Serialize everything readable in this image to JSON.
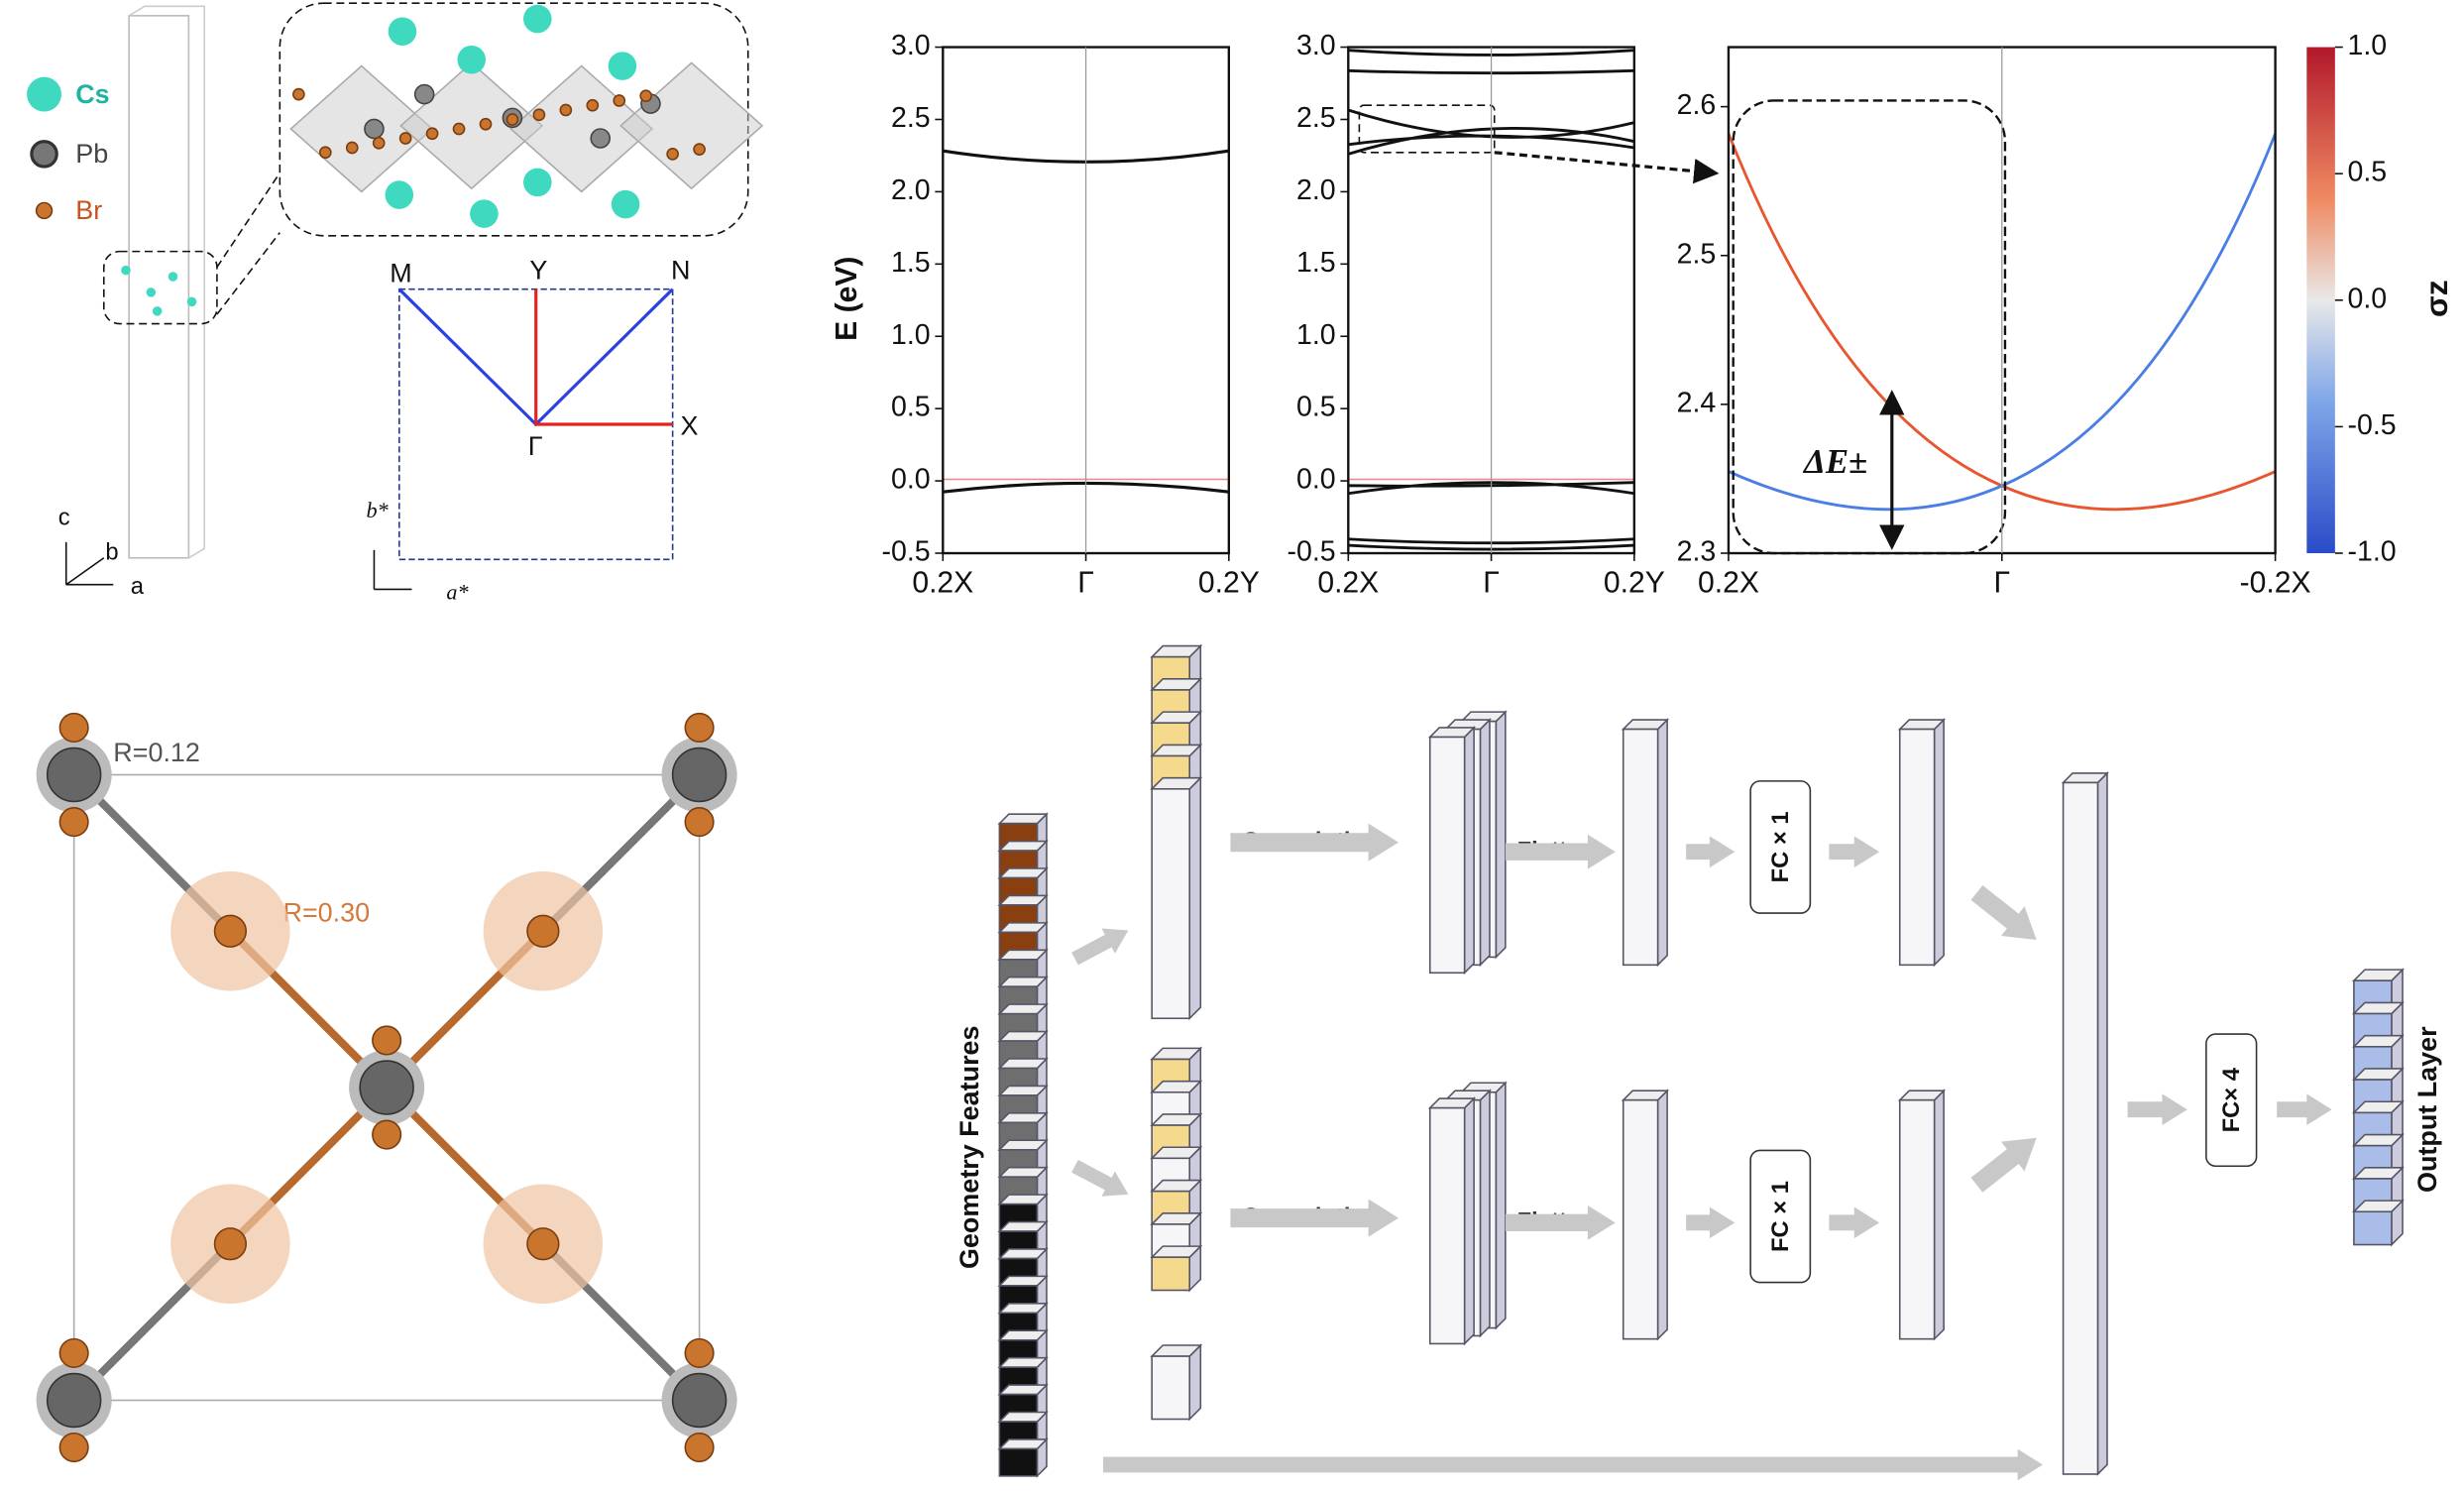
{
  "structure_panel": {
    "legend": [
      "Cs",
      "Pb",
      "Br"
    ],
    "axes": [
      "c",
      "b",
      "a"
    ],
    "bz_labels": [
      "M",
      "Y",
      "N",
      "Γ",
      "X"
    ],
    "reciprocal_axes": [
      "b*",
      "a*"
    ]
  },
  "band_panel": {
    "ylabel": "E (eV)",
    "plot_1": {
      "ylim": [
        -0.5,
        3.0
      ],
      "yticks": [
        {
          "value": 3.0,
          "label": "3.0"
        },
        {
          "value": 2.5,
          "label": "2.5"
        },
        {
          "value": 2.0,
          "label": "2.0"
        },
        {
          "value": 1.5,
          "label": "1.5"
        },
        {
          "value": 1.0,
          "label": "1.0"
        },
        {
          "value": 0.5,
          "label": "0.5"
        },
        {
          "value": 0.0,
          "label": "0.0"
        },
        {
          "value": -0.5,
          "label": "-0.5"
        }
      ],
      "xticks": [
        "0.2X",
        "Γ",
        "0.2Y"
      ]
    },
    "plot_2": {
      "ylim": [
        -0.5,
        3.0
      ],
      "yticks": [
        {
          "value": 3.0,
          "label": "3.0"
        },
        {
          "value": 2.5,
          "label": "2.5"
        },
        {
          "value": 2.0,
          "label": "2.0"
        },
        {
          "value": 1.5,
          "label": "1.5"
        },
        {
          "value": 1.0,
          "label": "1.0"
        },
        {
          "value": 0.5,
          "label": "0.5"
        },
        {
          "value": 0.0,
          "label": "0.0"
        },
        {
          "value": -0.5,
          "label": "-0.5"
        }
      ],
      "xticks": [
        "0.2X",
        "Γ",
        "0.2Y"
      ]
    },
    "plot_3": {
      "ylim": [
        2.3,
        2.64
      ],
      "yticks": [
        {
          "value": 2.6,
          "label": "2.6"
        },
        {
          "value": 2.5,
          "label": "2.5"
        },
        {
          "value": 2.4,
          "label": "2.4"
        },
        {
          "value": 2.3,
          "label": "2.3"
        }
      ],
      "xticks": [
        "0.2X",
        "Γ",
        "-0.2X"
      ],
      "annotation": "ΔE±"
    },
    "colorbar": {
      "label": "σz",
      "lim": [
        -1.0,
        1.0
      ],
      "ticks": [
        {
          "value": 1.0,
          "label": "1.0"
        },
        {
          "value": 0.5,
          "label": "0.5"
        },
        {
          "value": 0.0,
          "label": "0.0"
        },
        {
          "value": -0.5,
          "label": "-0.5"
        },
        {
          "value": -1.0,
          "label": "-1.0"
        }
      ]
    }
  },
  "lattice_panel": {
    "labels": [
      "R=0.12",
      "R=0.30"
    ]
  },
  "network_panel": {
    "input": "Geometry Features",
    "convolution": [
      "Convolution",
      "Convolution"
    ],
    "flatten": [
      "Flatten",
      "Flatten"
    ],
    "fc_branch": [
      "FC × 1",
      "FC × 1"
    ],
    "fc_merge": "FC× 4",
    "output": "Output Layer"
  }
}
